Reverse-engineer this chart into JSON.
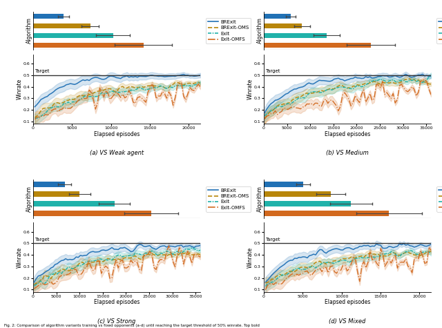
{
  "colors": {
    "brexit": "#2171b5",
    "brexit_oms": "#b8860b",
    "exit": "#20b2aa",
    "exit_omfs": "#d2691e"
  },
  "subplots": [
    {
      "title": "(a) VS Weak agent",
      "bar_xlim": 22000,
      "line_xlim": 21500,
      "line_ylim": [
        0.08,
        0.68
      ],
      "line_xticks": [
        0,
        5000,
        10000,
        15000,
        20000
      ],
      "bar_values": [
        4000,
        7500,
        10500,
        14500
      ],
      "bar_errors": [
        700,
        1100,
        2200,
        3800
      ],
      "target": 0.5
    },
    {
      "title": "(b) VS Medium",
      "bar_xlim": 36000,
      "line_xlim": 36000,
      "line_ylim": [
        0.08,
        0.68
      ],
      "line_xticks": [
        0,
        5000,
        10000,
        15000,
        20000,
        25000,
        30000,
        35000
      ],
      "bar_values": [
        5800,
        8200,
        13500,
        23000
      ],
      "bar_errors": [
        1100,
        1700,
        2800,
        5200
      ],
      "target": 0.5
    },
    {
      "title": "(c) VS Strong",
      "bar_xlim": 36000,
      "line_xlim": 36000,
      "line_ylim": [
        0.08,
        0.68
      ],
      "line_xticks": [
        0,
        5000,
        10000,
        15000,
        20000,
        25000,
        30000,
        35000
      ],
      "bar_values": [
        6800,
        10000,
        17500,
        25500
      ],
      "bar_errors": [
        1400,
        2300,
        3300,
        5800
      ],
      "target": 0.5
    },
    {
      "title": "(d) VS Mixed",
      "bar_xlim": 22000,
      "line_xlim": 21500,
      "line_ylim": [
        0.08,
        0.68
      ],
      "line_xticks": [
        0,
        5000,
        10000,
        15000,
        20000
      ],
      "bar_values": [
        5200,
        8800,
        11500,
        16500
      ],
      "bar_errors": [
        900,
        1900,
        2800,
        4300
      ],
      "target": 0.5
    }
  ],
  "legend_labels": [
    "BRExIt",
    "BRExIt-OMS",
    "ExIt",
    "ExIt-OMFS"
  ],
  "ylabel_bar": "Algorithm",
  "ylabel_line": "Winrate",
  "xlabel_line": "Elapsed episodes",
  "caption": "Fig. 2: Comparison of algorithm variants training vs fixed opponents (a-d) until reaching the target threshold of 50% winrate. Top bold"
}
